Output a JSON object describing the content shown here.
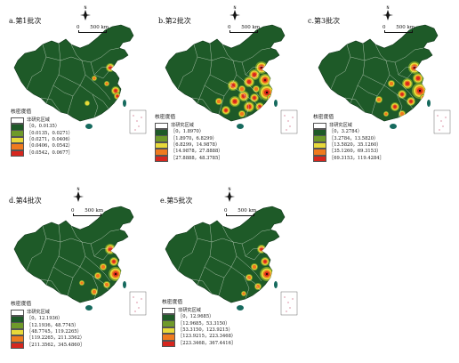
{
  "colors": {
    "base": "#1e5a28",
    "mid": "#6f9a2a",
    "hi": "#e8d93a",
    "hot": "#ef7a1e",
    "peak": "#d7261e",
    "border": "#dfe8dc",
    "sea": "#ffffff"
  },
  "scale_text": "500 km",
  "scale_zero": "0",
  "legend_title": "核密度值",
  "non_study_label": "非研究区域",
  "panels": [
    {
      "label": "a.第1批次",
      "legend": [
        "［0，0.0135）",
        "［0.0135，0.0271）",
        "［0.0271，0.0406）",
        "［0.0406，0.0542）",
        "［0.0542，0.0677］"
      ]
    },
    {
      "label": "b.第2批次",
      "legend": [
        "［0，1.8970）",
        "［1.8970，6.8299）",
        "［6.8299，14.9878）",
        "［14.9878，27.8888）",
        "［27.8888，48.3785］"
      ]
    },
    {
      "label": "c.第3批次",
      "legend": [
        "［0，3.2784）",
        "［3.2784，13.5820）",
        "［13.5820，35.1260）",
        "［35.1260，69.3153）",
        "［69.3153，119.4284］"
      ]
    },
    {
      "label": "d.第4批次",
      "legend": [
        "［0，12.1936）",
        "［12.1936，48.7745）",
        "［48.7745，119.2265）",
        "［119.2265，211.3562）",
        "［211.3562，345.4860］"
      ]
    },
    {
      "label": "e.第5批次",
      "legend": [
        "［0，12.9685）",
        "［12.9685，53.3150）",
        "［53.3150，123.9215）",
        "［123.9215，223.3468）",
        "［223.3468，367.4416］"
      ]
    }
  ]
}
